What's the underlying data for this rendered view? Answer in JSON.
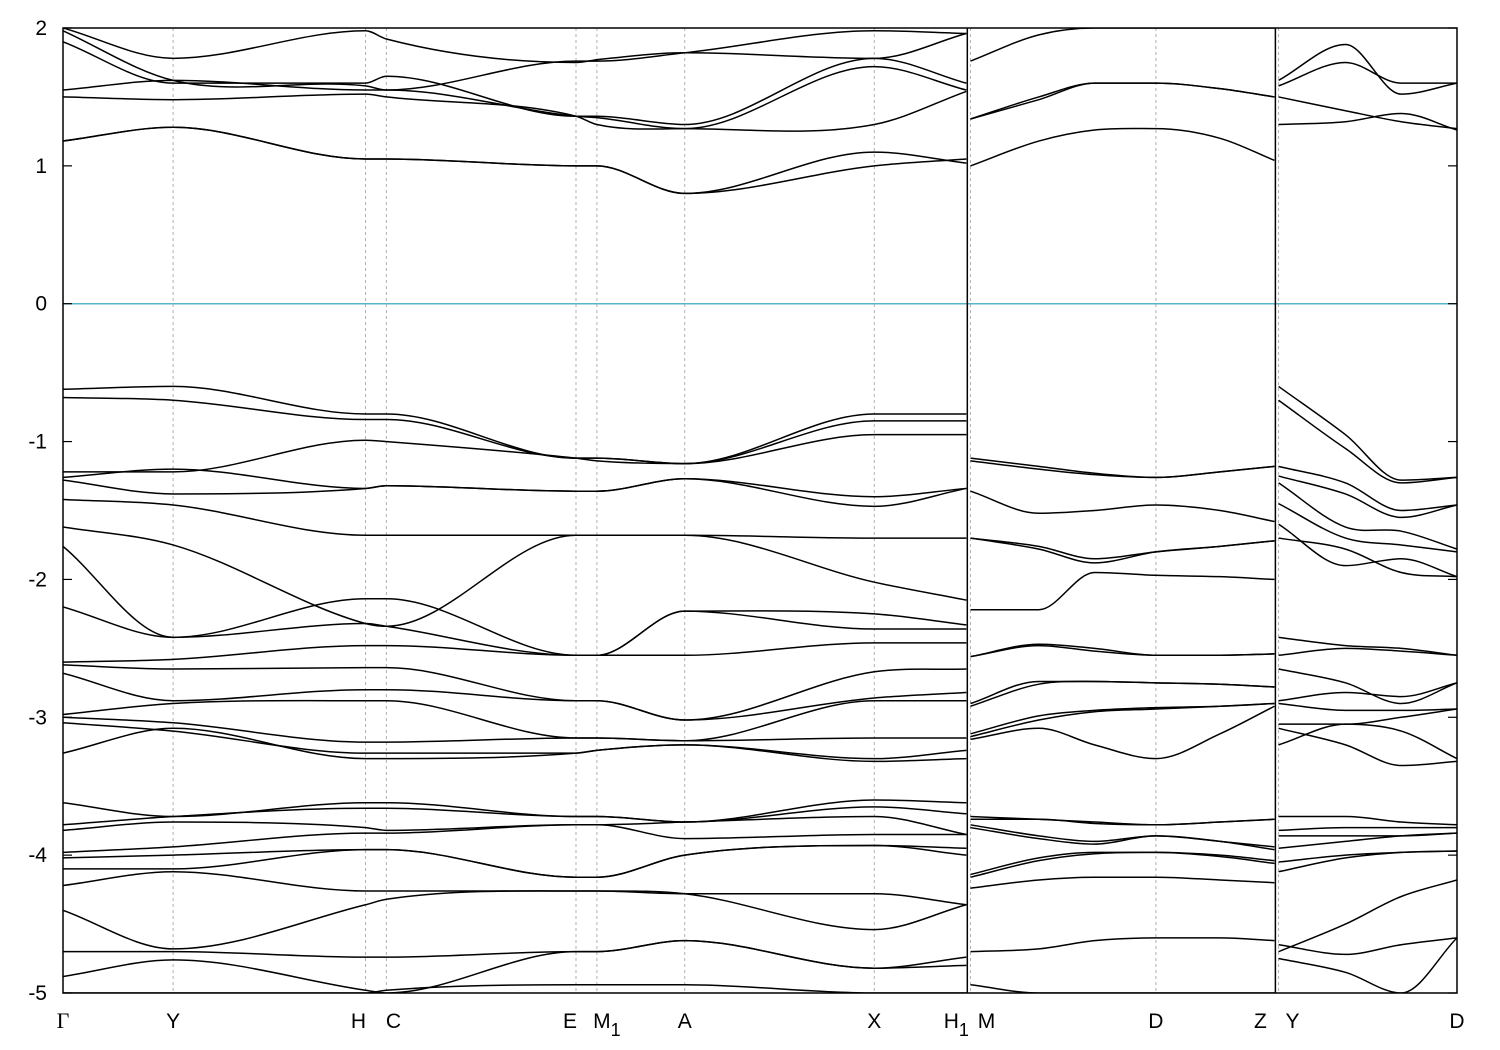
{
  "chart_data": {
    "type": "line",
    "title": "",
    "xlabel": "",
    "ylabel": "",
    "ylim": [
      -5,
      2
    ],
    "yticks": [
      2,
      1,
      0,
      -1,
      -2,
      -3,
      -4,
      -5
    ],
    "xlim": [
      0,
      1000
    ],
    "fermi_level": {
      "y": 0,
      "color": "#5ab4c8"
    },
    "line_color": "#000000",
    "kpoints": [
      {
        "label": "Γ",
        "sub": "",
        "x": 0
      },
      {
        "label": "Y",
        "sub": "",
        "x": 79
      },
      {
        "label": "H",
        "sub": "",
        "x": 217
      },
      {
        "label": "C",
        "sub": "",
        "x": 232
      },
      {
        "label": "E",
        "sub": "",
        "x": 368
      },
      {
        "label": "M",
        "sub": "1",
        "x": 383
      },
      {
        "label": "A",
        "sub": "",
        "x": 446
      },
      {
        "label": "X",
        "sub": "",
        "x": 582
      },
      {
        "label": "H",
        "sub": "1",
        "x": 648
      },
      {
        "label": "M",
        "sub": "",
        "x": 651
      },
      {
        "label": "D",
        "sub": "",
        "x": 784
      },
      {
        "label": "Z",
        "sub": "",
        "x": 869
      },
      {
        "label": "Y",
        "sub": "",
        "x": 872
      },
      {
        "label": "D",
        "sub": "",
        "x": 1000
      }
    ],
    "breaks": [
      648,
      869
    ],
    "segments": [
      {
        "x": [
          0,
          79,
          217,
          232,
          368,
          383,
          446,
          582,
          648
        ],
        "series": [
          {
            "values": [
              2.0,
              1.78,
              1.98,
              1.92,
              1.75,
              1.77,
              1.82,
              1.78,
              1.96
            ]
          },
          {
            "values": [
              1.98,
              1.62,
              1.58,
              1.55,
              1.76,
              1.76,
              1.82,
              1.98,
              1.96
            ]
          },
          {
            "values": [
              1.9,
              1.6,
              1.6,
              1.65,
              1.36,
              1.36,
              1.3,
              1.78,
              1.6
            ]
          },
          {
            "values": [
              1.55,
              1.62,
              1.55,
              1.55,
              1.36,
              1.35,
              1.27,
              1.72,
              1.55
            ]
          },
          {
            "values": [
              1.5,
              1.48,
              1.52,
              1.5,
              1.36,
              1.3,
              1.27,
              1.3,
              1.54
            ]
          },
          {
            "values": [
              1.18,
              1.28,
              1.05,
              1.05,
              1.0,
              1.0,
              0.8,
              1.0,
              1.05
            ]
          },
          {
            "values": [
              1.18,
              1.28,
              1.05,
              1.05,
              1.0,
              1.0,
              0.8,
              1.1,
              1.02
            ]
          },
          {
            "values": [
              -0.62,
              -0.6,
              -0.8,
              -0.8,
              -1.12,
              -1.12,
              -1.16,
              -0.8,
              -0.8
            ]
          },
          {
            "values": [
              -0.68,
              -0.7,
              -0.84,
              -0.84,
              -1.12,
              -1.12,
              -1.16,
              -0.85,
              -0.85
            ]
          },
          {
            "values": [
              -1.22,
              -1.22,
              -0.99,
              -1.0,
              -1.12,
              -1.14,
              -1.16,
              -0.95,
              -0.95
            ]
          },
          {
            "values": [
              -1.26,
              -1.2,
              -1.34,
              -1.32,
              -1.36,
              -1.36,
              -1.27,
              -1.4,
              -1.34
            ]
          },
          {
            "values": [
              -1.28,
              -1.38,
              -1.34,
              -1.32,
              -1.36,
              -1.36,
              -1.27,
              -1.47,
              -1.34
            ]
          },
          {
            "values": [
              -1.42,
              -1.46,
              -1.68,
              -1.68,
              -1.68,
              -1.68,
              -1.68,
              -1.7,
              -1.7
            ]
          },
          {
            "values": [
              -1.62,
              -1.75,
              -2.32,
              -2.34,
              -1.68,
              -1.68,
              -1.68,
              -2.02,
              -2.15
            ]
          },
          {
            "values": [
              -1.76,
              -2.42,
              -2.32,
              -2.34,
              -2.55,
              -2.55,
              -2.23,
              -2.25,
              -2.33
            ]
          },
          {
            "values": [
              -2.2,
              -2.42,
              -2.14,
              -2.14,
              -2.55,
              -2.55,
              -2.23,
              -2.36,
              -2.36
            ]
          },
          {
            "values": [
              -2.6,
              -2.58,
              -2.48,
              -2.48,
              -2.55,
              -2.55,
              -2.55,
              -2.46,
              -2.46
            ]
          },
          {
            "values": [
              -2.62,
              -2.65,
              -2.64,
              -2.64,
              -2.88,
              -2.88,
              -3.02,
              -2.67,
              -2.65
            ]
          },
          {
            "values": [
              -2.68,
              -2.88,
              -2.8,
              -2.8,
              -2.88,
              -2.88,
              -3.02,
              -2.86,
              -2.82
            ]
          },
          {
            "values": [
              -2.98,
              -2.9,
              -2.88,
              -2.88,
              -3.15,
              -3.15,
              -3.17,
              -2.88,
              -2.88
            ]
          },
          {
            "values": [
              -3.0,
              -3.04,
              -3.18,
              -3.18,
              -3.15,
              -3.15,
              -3.17,
              -3.15,
              -3.15
            ]
          },
          {
            "values": [
              -3.04,
              -3.1,
              -3.26,
              -3.26,
              -3.26,
              -3.24,
              -3.2,
              -3.3,
              -3.24
            ]
          },
          {
            "values": [
              -3.26,
              -3.08,
              -3.3,
              -3.3,
              -3.26,
              -3.24,
              -3.2,
              -3.32,
              -3.3
            ]
          },
          {
            "values": [
              -3.62,
              -3.72,
              -3.62,
              -3.62,
              -3.72,
              -3.72,
              -3.76,
              -3.6,
              -3.62
            ]
          },
          {
            "values": [
              -3.78,
              -3.72,
              -3.66,
              -3.66,
              -3.72,
              -3.72,
              -3.76,
              -3.65,
              -3.7
            ]
          },
          {
            "values": [
              -3.82,
              -3.76,
              -3.8,
              -3.82,
              -3.78,
              -3.78,
              -3.76,
              -3.72,
              -3.85
            ]
          },
          {
            "values": [
              -3.98,
              -3.94,
              -3.84,
              -3.84,
              -3.78,
              -3.78,
              -3.88,
              -3.85,
              -3.85
            ]
          },
          {
            "values": [
              -4.02,
              -4.0,
              -3.96,
              -3.96,
              -4.16,
              -4.16,
              -4.0,
              -3.93,
              -3.95
            ]
          },
          {
            "values": [
              -4.1,
              -4.1,
              -3.96,
              -3.96,
              -4.16,
              -4.16,
              -4.0,
              -3.93,
              -4.0
            ]
          },
          {
            "values": [
              -4.22,
              -4.12,
              -4.26,
              -4.26,
              -4.26,
              -4.26,
              -4.28,
              -4.28,
              -4.36
            ]
          },
          {
            "values": [
              -4.4,
              -4.68,
              -4.36,
              -4.32,
              -4.26,
              -4.26,
              -4.28,
              -4.54,
              -4.36
            ]
          },
          {
            "values": [
              -4.7,
              -4.7,
              -4.74,
              -4.74,
              -4.7,
              -4.7,
              -4.62,
              -4.82,
              -4.74
            ]
          },
          {
            "values": [
              -4.88,
              -4.76,
              -4.98,
              -5.0,
              -4.7,
              -4.7,
              -4.62,
              -4.82,
              -4.8
            ]
          },
          {
            "values": [
              -5.0,
              -5.0,
              -5.0,
              -4.98,
              -4.94,
              -4.94,
              -4.94,
              -5.0,
              -5.0
            ]
          }
        ]
      },
      {
        "x": [
          651,
          700,
          740,
          784,
          830,
          869
        ],
        "series": [
          {
            "values": [
              1.76,
              1.95,
              2.0,
              2.0,
              2.0,
              2.0
            ]
          },
          {
            "values": [
              1.34,
              1.5,
              1.6,
              1.6,
              1.56,
              1.5
            ]
          },
          {
            "values": [
              1.34,
              1.48,
              1.6,
              1.6,
              1.56,
              1.5
            ]
          },
          {
            "values": [
              1.0,
              1.18,
              1.26,
              1.27,
              1.2,
              1.04
            ]
          },
          {
            "values": [
              -1.12,
              -1.18,
              -1.23,
              -1.26,
              -1.22,
              -1.18
            ]
          },
          {
            "values": [
              -1.14,
              -1.2,
              -1.24,
              -1.26,
              -1.22,
              -1.18
            ]
          },
          {
            "values": [
              -1.36,
              -1.52,
              -1.5,
              -1.46,
              -1.5,
              -1.58
            ]
          },
          {
            "values": [
              -1.7,
              -1.76,
              -1.85,
              -1.8,
              -1.76,
              -1.72
            ]
          },
          {
            "values": [
              -1.7,
              -1.78,
              -1.88,
              -1.8,
              -1.76,
              -1.72
            ]
          },
          {
            "values": [
              -2.22,
              -2.22,
              -1.95,
              -1.97,
              -1.98,
              -2.0
            ]
          },
          {
            "values": [
              -2.56,
              -2.48,
              -2.52,
              -2.55,
              -2.55,
              -2.54
            ]
          },
          {
            "values": [
              -2.56,
              -2.47,
              -2.5,
              -2.55,
              -2.55,
              -2.54
            ]
          },
          {
            "values": [
              -2.9,
              -2.74,
              -2.74,
              -2.75,
              -2.76,
              -2.78
            ]
          },
          {
            "values": [
              -2.92,
              -2.76,
              -2.74,
              -2.75,
              -2.76,
              -2.78
            ]
          },
          {
            "values": [
              -3.12,
              -2.99,
              -2.95,
              -2.93,
              -2.92,
              -2.9
            ]
          },
          {
            "values": [
              -3.14,
              -3.02,
              -2.96,
              -2.94,
              -2.92,
              -2.9
            ]
          },
          {
            "values": [
              -3.16,
              -3.08,
              -3.2,
              -3.3,
              -3.12,
              -2.92
            ]
          },
          {
            "values": [
              -3.72,
              -3.74,
              -3.76,
              -3.78,
              -3.76,
              -3.74
            ]
          },
          {
            "values": [
              -3.74,
              -3.74,
              -3.77,
              -3.78,
              -3.76,
              -3.74
            ]
          },
          {
            "values": [
              -3.78,
              -3.86,
              -3.9,
              -3.86,
              -3.9,
              -3.94
            ]
          },
          {
            "values": [
              -3.8,
              -3.88,
              -3.92,
              -3.86,
              -3.9,
              -3.96
            ]
          },
          {
            "values": [
              -4.14,
              -4.02,
              -3.98,
              -3.98,
              -4.0,
              -4.04
            ]
          },
          {
            "values": [
              -4.16,
              -4.04,
              -3.99,
              -3.98,
              -4.01,
              -4.06
            ]
          },
          {
            "values": [
              -4.24,
              -4.18,
              -4.16,
              -4.16,
              -4.18,
              -4.2
            ]
          },
          {
            "values": [
              -4.7,
              -4.68,
              -4.62,
              -4.6,
              -4.6,
              -4.62
            ]
          },
          {
            "values": [
              -4.94,
              -5.0,
              -5.0,
              -5.0,
              -5.0,
              -5.0
            ]
          }
        ]
      },
      {
        "x": [
          872,
          920,
          960,
          1000
        ],
        "series": [
          {
            "values": [
              1.62,
              1.88,
              1.52,
              1.6
            ]
          },
          {
            "values": [
              1.58,
              1.75,
              1.6,
              1.6
            ]
          },
          {
            "values": [
              1.5,
              1.4,
              1.32,
              1.27
            ]
          },
          {
            "values": [
              1.3,
              1.32,
              1.38,
              1.26
            ]
          },
          {
            "values": [
              -0.6,
              -0.95,
              -1.28,
              -1.26
            ]
          },
          {
            "values": [
              -0.7,
              -1.05,
              -1.3,
              -1.26
            ]
          },
          {
            "values": [
              -1.18,
              -1.3,
              -1.5,
              -1.46
            ]
          },
          {
            "values": [
              -1.25,
              -1.38,
              -1.55,
              -1.46
            ]
          },
          {
            "values": [
              -1.3,
              -1.62,
              -1.65,
              -1.78
            ]
          },
          {
            "values": [
              -1.45,
              -1.7,
              -1.75,
              -1.8
            ]
          },
          {
            "values": [
              -1.6,
              -1.9,
              -1.85,
              -1.98
            ]
          },
          {
            "values": [
              -1.7,
              -1.78,
              -1.95,
              -1.98
            ]
          },
          {
            "values": [
              -2.42,
              -2.48,
              -2.5,
              -2.55
            ]
          },
          {
            "values": [
              -2.55,
              -2.5,
              -2.52,
              -2.55
            ]
          },
          {
            "values": [
              -2.65,
              -2.75,
              -2.9,
              -2.75
            ]
          },
          {
            "values": [
              -2.88,
              -2.82,
              -2.85,
              -2.75
            ]
          },
          {
            "values": [
              -2.9,
              -2.95,
              -2.95,
              -2.94
            ]
          },
          {
            "values": [
              -3.05,
              -3.05,
              -3.0,
              -2.94
            ]
          },
          {
            "values": [
              -3.2,
              -3.05,
              -3.1,
              -3.3
            ]
          },
          {
            "values": [
              -3.08,
              -3.2,
              -3.35,
              -3.32
            ]
          },
          {
            "values": [
              -3.72,
              -3.72,
              -3.76,
              -3.78
            ]
          },
          {
            "values": [
              -3.82,
              -3.8,
              -3.8,
              -3.8
            ]
          },
          {
            "values": [
              -3.86,
              -3.86,
              -3.86,
              -3.84
            ]
          },
          {
            "values": [
              -3.95,
              -3.9,
              -3.86,
              -3.84
            ]
          },
          {
            "values": [
              -4.05,
              -4.0,
              -3.98,
              -3.97
            ]
          },
          {
            "values": [
              -4.12,
              -4.02,
              -3.98,
              -3.97
            ]
          },
          {
            "values": [
              -4.7,
              -4.5,
              -4.3,
              -4.18
            ]
          },
          {
            "values": [
              -4.65,
              -4.72,
              -4.65,
              -4.6
            ]
          },
          {
            "values": [
              -4.75,
              -4.85,
              -5.0,
              -4.6
            ]
          }
        ]
      }
    ]
  }
}
